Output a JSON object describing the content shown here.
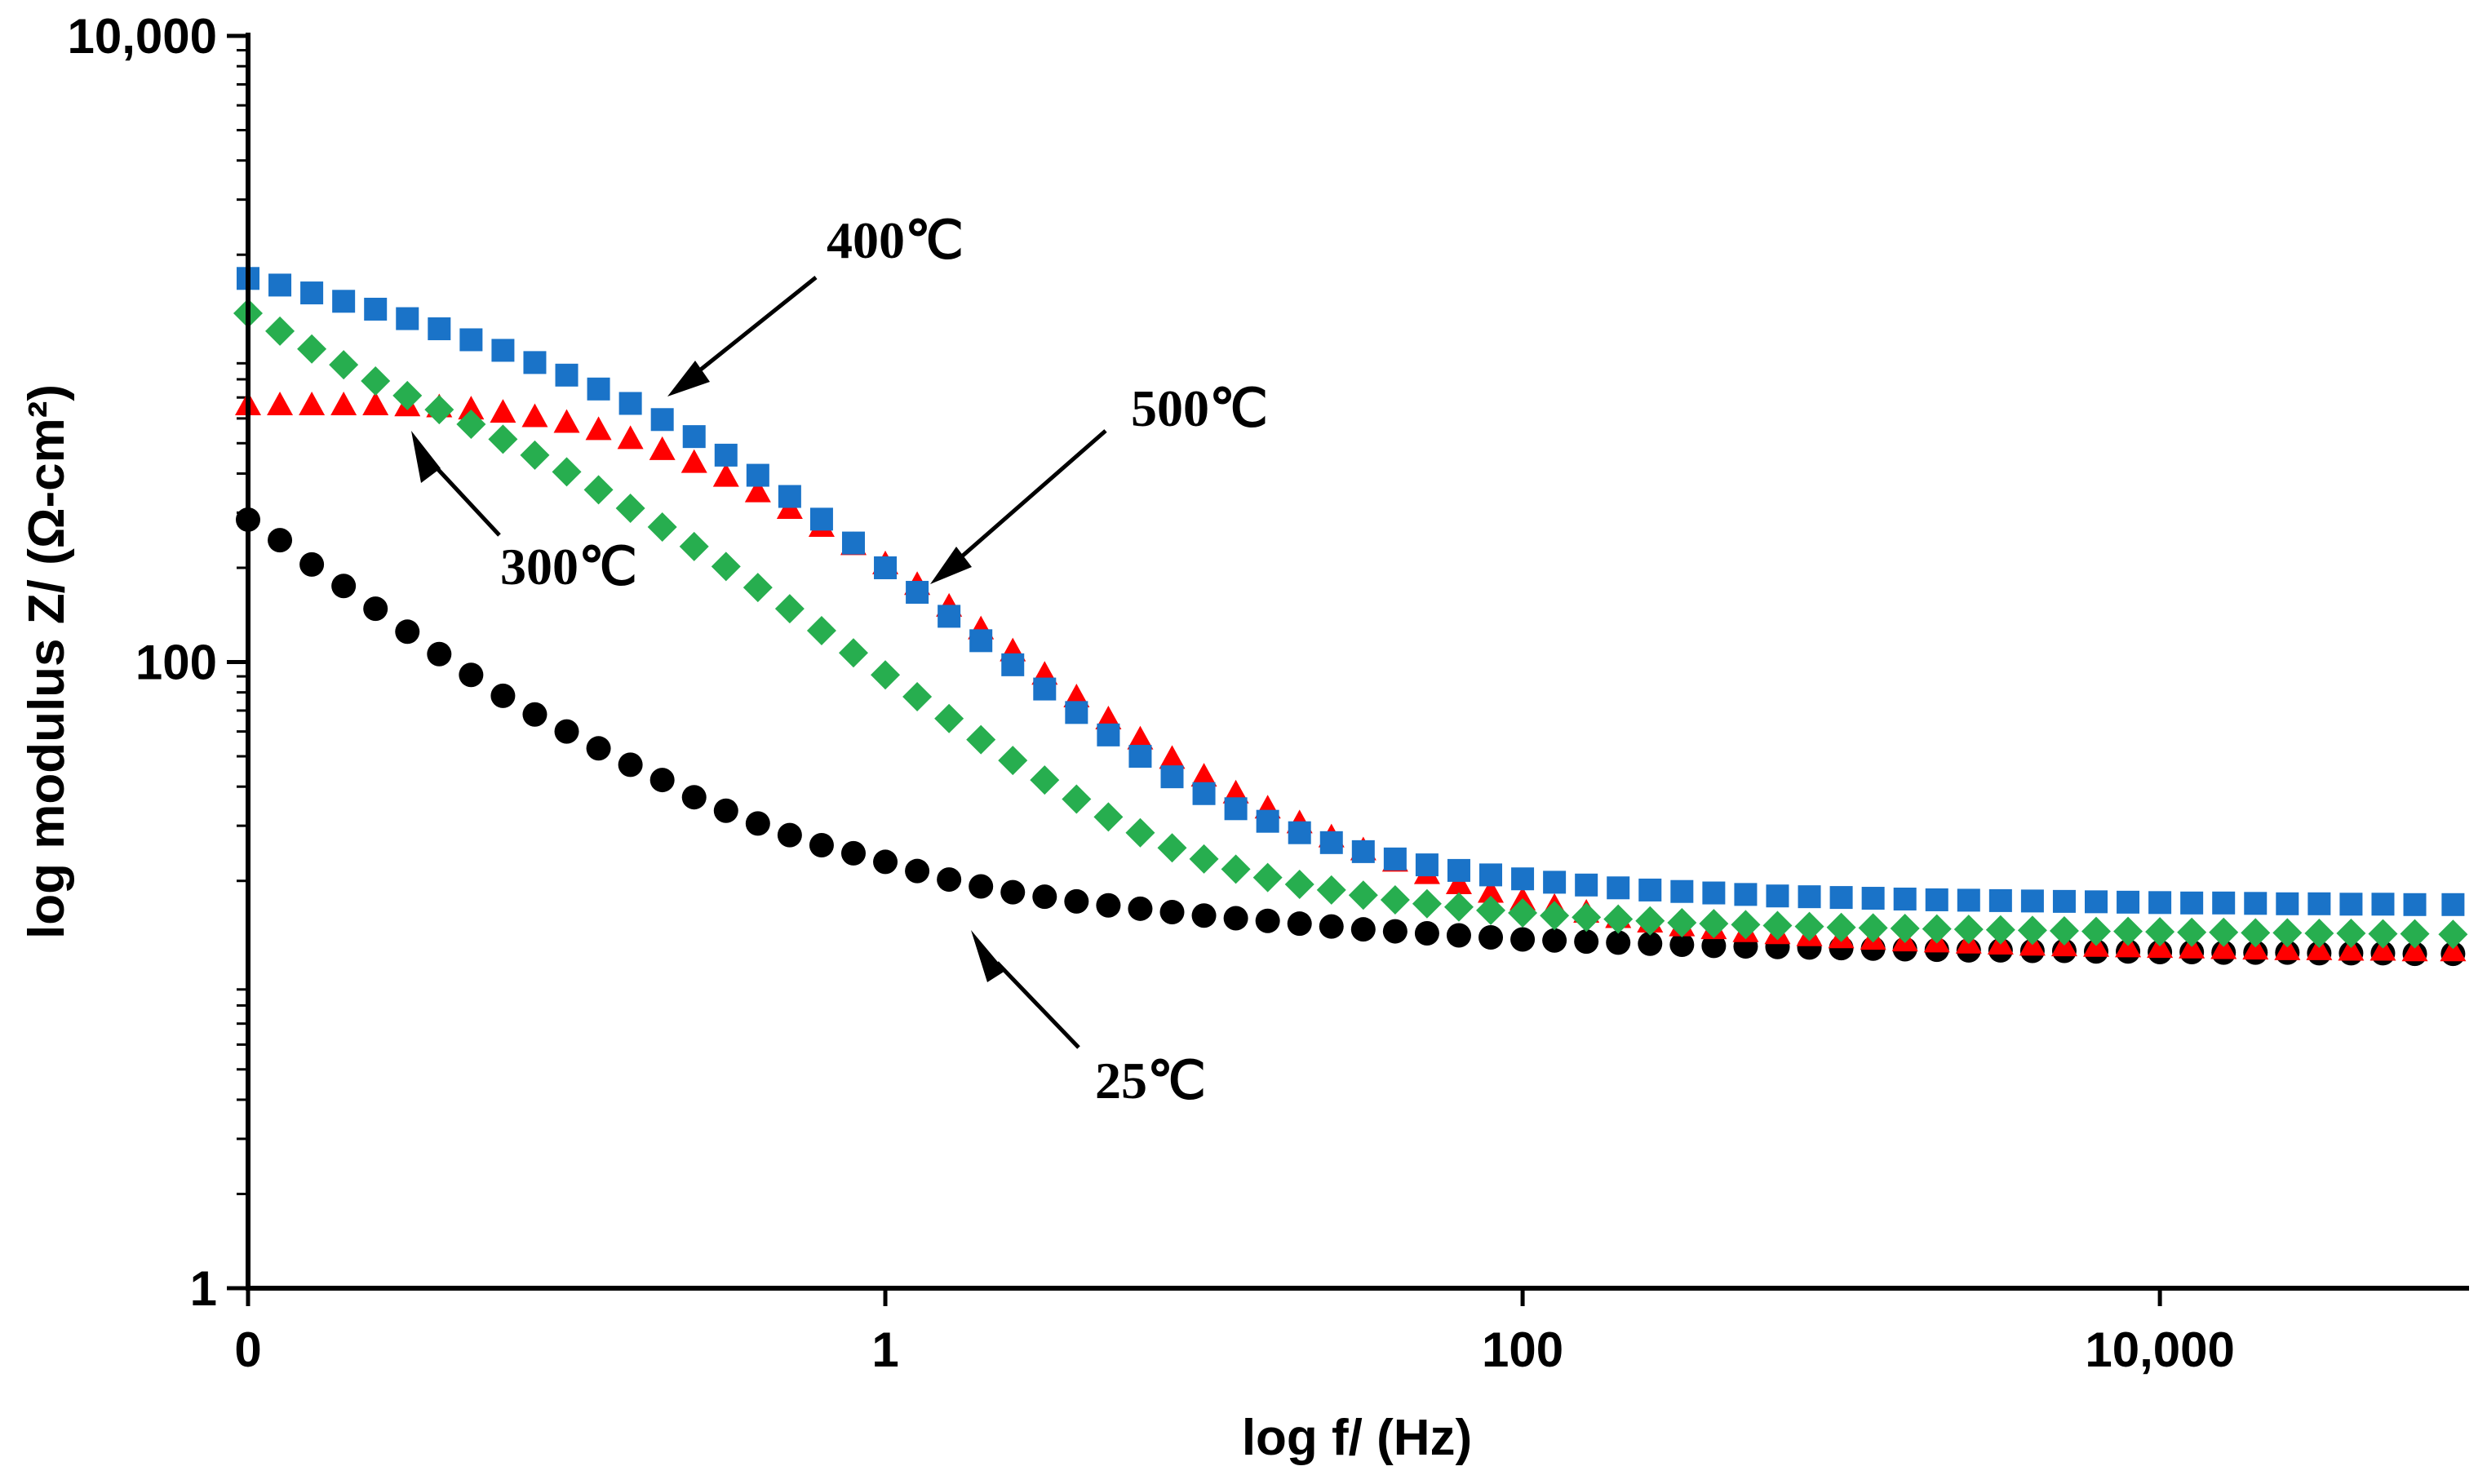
{
  "chart_data": {
    "type": "scatter",
    "title": "",
    "xlabel": "log f/ (Hz)",
    "ylabel": "log modulus Z/ (Ω-cm²)",
    "x_scale": "log-index",
    "y_scale": "log",
    "xlim": [
      0,
      3.48
    ],
    "ylim": [
      1,
      10000
    ],
    "xticks": [
      {
        "pos": 0,
        "label": "0"
      },
      {
        "pos": 1,
        "label": "1"
      },
      {
        "pos": 2,
        "label": "100"
      },
      {
        "pos": 3,
        "label": "10,000"
      }
    ],
    "yticks": [
      {
        "value": 1,
        "label": "1"
      },
      {
        "value": 100,
        "label": "100"
      },
      {
        "value": 10000,
        "label": "10,000"
      }
    ],
    "series": [
      {
        "name": "25℃",
        "color": "#000000",
        "marker": "circle",
        "x": [
          0.0,
          0.05,
          0.1,
          0.15,
          0.2,
          0.25,
          0.3,
          0.35,
          0.4,
          0.45,
          0.5,
          0.55,
          0.6,
          0.65,
          0.7,
          0.75,
          0.8,
          0.85,
          0.9,
          0.95,
          1.0,
          1.05,
          1.1,
          1.15,
          1.2,
          1.25,
          1.3,
          1.35,
          1.4,
          1.45,
          1.5,
          1.55,
          1.6,
          1.65,
          1.7,
          1.75,
          1.8,
          1.85,
          1.9,
          1.95,
          2.0,
          2.05,
          2.1,
          2.15,
          2.2,
          2.25,
          2.3,
          2.35,
          2.4,
          2.45,
          2.5,
          2.55,
          2.6,
          2.65,
          2.7,
          2.75,
          2.8,
          2.85,
          2.9,
          2.95,
          3.0,
          3.05,
          3.1,
          3.15,
          3.2,
          3.25,
          3.3,
          3.35,
          3.4,
          3.46
        ],
        "y": [
          285,
          245,
          205,
          175,
          148,
          125,
          106,
          91,
          78,
          68,
          60,
          53,
          47,
          42,
          37,
          33.5,
          30.5,
          28,
          26,
          24.5,
          23,
          21.5,
          20.2,
          19.2,
          18.4,
          17.8,
          17.2,
          16.7,
          16.3,
          15.9,
          15.5,
          15.2,
          14.9,
          14.6,
          14.3,
          14.0,
          13.8,
          13.6,
          13.4,
          13.2,
          13.0,
          12.9,
          12.8,
          12.7,
          12.6,
          12.5,
          12.4,
          12.35,
          12.3,
          12.25,
          12.2,
          12.15,
          12.1,
          12.05,
          12.0,
          12.0,
          11.95,
          11.95,
          11.9,
          11.9,
          11.85,
          11.85,
          11.8,
          11.8,
          11.8,
          11.75,
          11.75,
          11.75,
          11.7,
          11.7
        ]
      },
      {
        "name": "300℃",
        "color": "#ff0000",
        "marker": "triangle",
        "x": [
          0.0,
          0.05,
          0.1,
          0.15,
          0.2,
          0.25,
          0.3,
          0.35,
          0.4,
          0.45,
          0.5,
          0.55,
          0.6,
          0.65,
          0.7,
          0.75,
          0.8,
          0.85,
          0.9,
          0.95,
          1.0,
          1.05,
          1.1,
          1.15,
          1.2,
          1.25,
          1.3,
          1.35,
          1.4,
          1.45,
          1.5,
          1.55,
          1.6,
          1.65,
          1.7,
          1.75,
          1.8,
          1.85,
          1.9,
          1.95,
          2.0,
          2.05,
          2.1,
          2.15,
          2.2,
          2.25,
          2.3,
          2.35,
          2.4,
          2.45,
          2.5,
          2.55,
          2.6,
          2.65,
          2.7,
          2.75,
          2.8,
          2.85,
          2.9,
          2.95,
          3.0,
          3.05,
          3.1,
          3.15,
          3.2,
          3.25,
          3.3,
          3.35,
          3.4,
          3.46
        ],
        "y": [
          660,
          660,
          660,
          660,
          660,
          655,
          650,
          640,
          625,
          605,
          580,
          550,
          515,
          475,
          432,
          390,
          348,
          308,
          270,
          236,
          205,
          176,
          150,
          127,
          108,
          91,
          77,
          65.5,
          56.5,
          49,
          43,
          38,
          34,
          30.5,
          27.5,
          25,
          23,
          21,
          19.5,
          18.3,
          17.3,
          16.5,
          15.8,
          15.2,
          14.7,
          14.3,
          14.0,
          13.7,
          13.5,
          13.3,
          13.1,
          12.95,
          12.8,
          12.7,
          12.6,
          12.5,
          12.4,
          12.35,
          12.3,
          12.25,
          12.2,
          12.15,
          12.1,
          12.05,
          12.0,
          12.0,
          11.95,
          11.95,
          11.9,
          11.9
        ]
      },
      {
        "name": "400℃",
        "color": "#1a73c8",
        "marker": "square",
        "x": [
          0.0,
          0.05,
          0.1,
          0.15,
          0.2,
          0.25,
          0.3,
          0.35,
          0.4,
          0.45,
          0.5,
          0.55,
          0.6,
          0.65,
          0.7,
          0.75,
          0.8,
          0.85,
          0.9,
          0.95,
          1.0,
          1.05,
          1.1,
          1.15,
          1.2,
          1.25,
          1.3,
          1.35,
          1.4,
          1.45,
          1.5,
          1.55,
          1.6,
          1.65,
          1.7,
          1.75,
          1.8,
          1.85,
          1.9,
          1.95,
          2.0,
          2.05,
          2.1,
          2.15,
          2.2,
          2.25,
          2.3,
          2.35,
          2.4,
          2.45,
          2.5,
          2.55,
          2.6,
          2.65,
          2.7,
          2.75,
          2.8,
          2.85,
          2.9,
          2.95,
          3.0,
          3.05,
          3.1,
          3.15,
          3.2,
          3.25,
          3.3,
          3.35,
          3.4,
          3.46
        ],
        "y": [
          1680,
          1600,
          1510,
          1420,
          1340,
          1250,
          1160,
          1070,
          990,
          905,
          825,
          745,
          670,
          595,
          525,
          458,
          395,
          338,
          286,
          240,
          200,
          167,
          140,
          117,
          98,
          82,
          69,
          58.5,
          50,
          43,
          38,
          34,
          31,
          28.5,
          26.5,
          24.8,
          23.5,
          22.5,
          21.6,
          20.9,
          20.3,
          19.8,
          19.4,
          19.0,
          18.7,
          18.5,
          18.3,
          18.1,
          17.9,
          17.8,
          17.7,
          17.6,
          17.5,
          17.4,
          17.35,
          17.3,
          17.25,
          17.2,
          17.15,
          17.1,
          17.05,
          17.0,
          17.0,
          16.95,
          16.9,
          16.9,
          16.85,
          16.85,
          16.8,
          16.8
        ]
      },
      {
        "name": "500℃",
        "color": "#27ae4f",
        "marker": "diamond",
        "x": [
          0.0,
          0.05,
          0.1,
          0.15,
          0.2,
          0.25,
          0.3,
          0.35,
          0.4,
          0.45,
          0.5,
          0.55,
          0.6,
          0.65,
          0.7,
          0.75,
          0.8,
          0.85,
          0.9,
          0.95,
          1.0,
          1.05,
          1.1,
          1.15,
          1.2,
          1.25,
          1.3,
          1.35,
          1.4,
          1.45,
          1.5,
          1.55,
          1.6,
          1.65,
          1.7,
          1.75,
          1.8,
          1.85,
          1.9,
          1.95,
          2.0,
          2.05,
          2.1,
          2.15,
          2.2,
          2.25,
          2.3,
          2.35,
          2.4,
          2.45,
          2.5,
          2.55,
          2.6,
          2.65,
          2.7,
          2.75,
          2.8,
          2.85,
          2.9,
          2.95,
          3.0,
          3.05,
          3.1,
          3.15,
          3.2,
          3.25,
          3.3,
          3.35,
          3.4,
          3.46
        ],
        "y": [
          1300,
          1140,
          1000,
          890,
          790,
          710,
          640,
          575,
          515,
          458,
          405,
          355,
          310,
          270,
          234,
          202,
          173,
          148,
          126,
          107,
          91,
          77.5,
          66,
          56.5,
          48.5,
          42,
          36.5,
          32,
          28.5,
          25.5,
          23.5,
          21.8,
          20.5,
          19.5,
          18.7,
          18.0,
          17.4,
          16.9,
          16.5,
          16.1,
          15.8,
          15.5,
          15.3,
          15.1,
          14.9,
          14.7,
          14.6,
          14.5,
          14.4,
          14.3,
          14.2,
          14.15,
          14.1,
          14.05,
          14.0,
          13.95,
          13.9,
          13.85,
          13.8,
          13.8,
          13.75,
          13.7,
          13.7,
          13.65,
          13.65,
          13.6,
          13.6,
          13.55,
          13.55,
          13.5
        ]
      }
    ],
    "annotations": [
      {
        "text": "400℃",
        "series": "400℃"
      },
      {
        "text": "500℃",
        "series": "500℃"
      },
      {
        "text": "300℃",
        "series": "300℃"
      },
      {
        "text": "25℃",
        "series": "25℃"
      }
    ]
  }
}
